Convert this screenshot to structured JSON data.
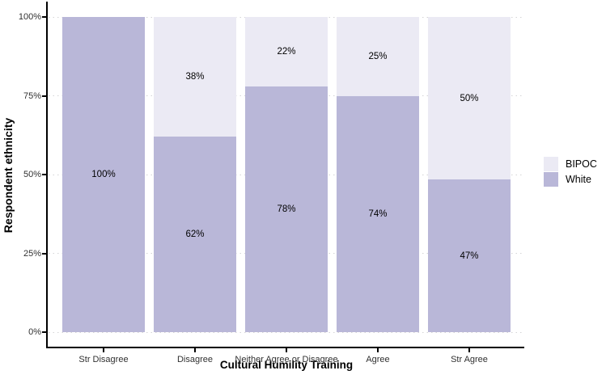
{
  "chart_data": {
    "type": "bar",
    "subtype": "100-percent-stacked-vertical",
    "title": "",
    "xlabel": "Cultural Humility Training",
    "ylabel": "Respondent ethnicity",
    "categories": [
      "Str Disagree",
      "Disagree",
      "Neither Agree or Disagree",
      "Agree",
      "Str Agree"
    ],
    "series": [
      {
        "name": "BIPOC",
        "color": "#ebeaf4",
        "values": [
          0,
          38,
          22,
          25,
          50
        ],
        "labels": [
          "",
          "38%",
          "22%",
          "25%",
          "50%"
        ]
      },
      {
        "name": "White",
        "color": "#b9b7d8",
        "values": [
          100,
          62,
          78,
          74,
          47
        ],
        "labels": [
          "100%",
          "62%",
          "78%",
          "74%",
          "47%"
        ]
      }
    ],
    "y_ticks": [
      {
        "label": "0%",
        "value": 0
      },
      {
        "label": "25%",
        "value": 25
      },
      {
        "label": "50%",
        "value": 50
      },
      {
        "label": "75%",
        "value": 75
      },
      {
        "label": "100%",
        "value": 100
      }
    ],
    "ylim": [
      0,
      100
    ],
    "grid": "horizontal-dotted",
    "legend_position": "right"
  }
}
